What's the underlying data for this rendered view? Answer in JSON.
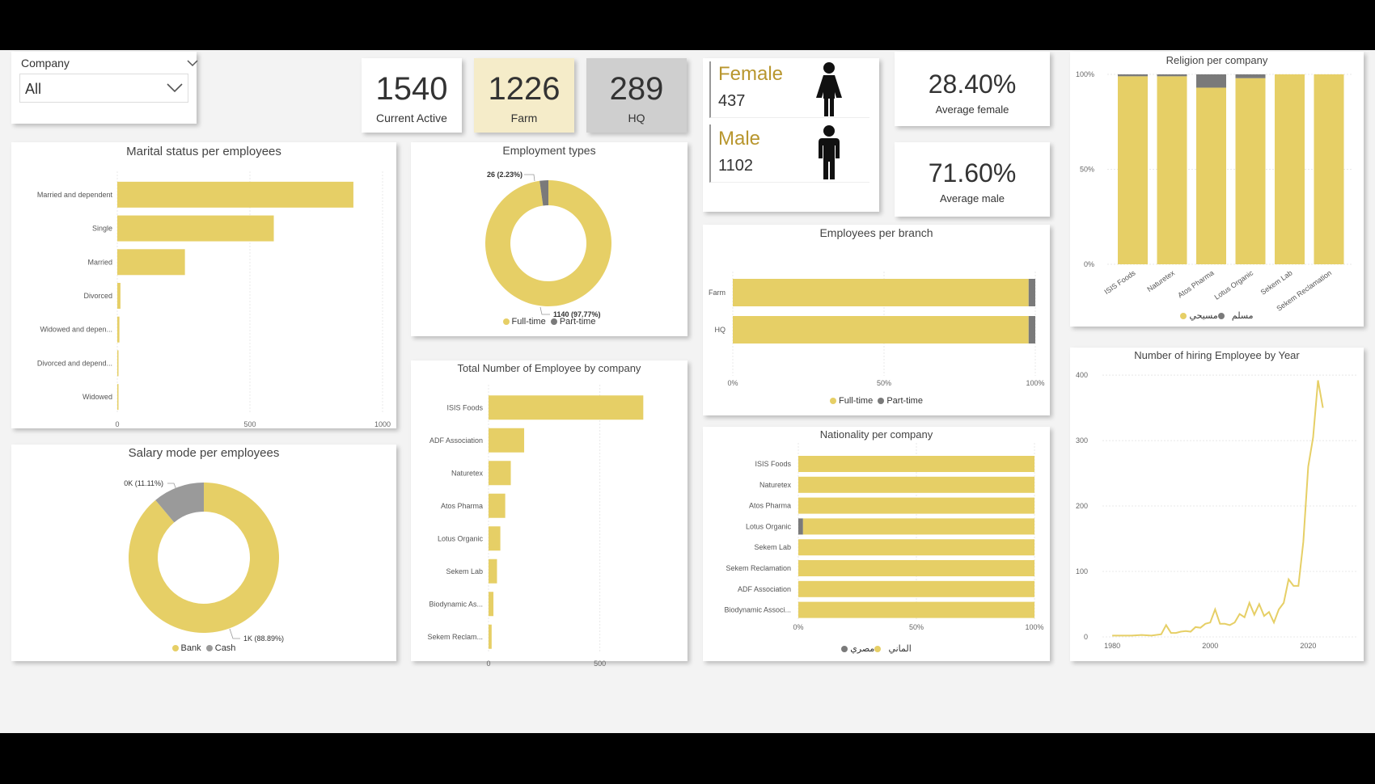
{
  "colors": {
    "yellow": "#e6cf66",
    "gray": "#8c8c8c",
    "darkgray": "#7a7a7a",
    "gold_text": "#b8962e"
  },
  "slicer": {
    "label": "Company",
    "value": "All"
  },
  "kpis": [
    {
      "value": "1540",
      "label": "Current Active"
    },
    {
      "value": "1226",
      "label": "Farm"
    },
    {
      "value": "289",
      "label": "HQ"
    }
  ],
  "gender": {
    "female_label": "Female",
    "female_value": "437",
    "female_icon": "female-person-icon",
    "male_label": "Male",
    "male_value": "1102",
    "male_icon": "male-person-icon"
  },
  "averages": [
    {
      "value": "28.40%",
      "label": "Average female"
    },
    {
      "value": "71.60%",
      "label": "Average male"
    }
  ],
  "chart_data": [
    {
      "id": "marital",
      "type": "bar",
      "title": "Marital status per employees",
      "categories": [
        "Married and dependent",
        "Single",
        "Married",
        "Divorced",
        "Widowed and depen...",
        "Divorced and depend...",
        "Widowed"
      ],
      "values": [
        890,
        590,
        255,
        12,
        8,
        4,
        3
      ],
      "xlim": [
        0,
        1000
      ],
      "ticks": [
        "0",
        "500",
        "1000"
      ],
      "tick_values": [
        0,
        500,
        1000
      ]
    },
    {
      "id": "employment",
      "type": "pie",
      "title": "Employment types",
      "series": [
        {
          "name": "Full-time",
          "value": 1140,
          "label": "1140 (97.77%)"
        },
        {
          "name": "Part-time",
          "value": 26,
          "label": "26 (2.23%)"
        }
      ]
    },
    {
      "id": "salary",
      "type": "pie",
      "title": "Salary mode per employees",
      "series": [
        {
          "name": "Bank",
          "value": 88.89,
          "label": "1K (88.89%)"
        },
        {
          "name": "Cash",
          "value": 11.11,
          "label": "0K (11.11%)"
        }
      ]
    },
    {
      "id": "bycompany",
      "type": "bar",
      "title": "Total Number of Employee by company",
      "categories": [
        "ISIS Foods",
        "ADF Association",
        "Naturetex",
        "Atos Pharma",
        "Lotus Organic",
        "Sekem Lab",
        "Biodynamic As...",
        "Sekem Reclam..."
      ],
      "values": [
        695,
        160,
        100,
        75,
        53,
        38,
        22,
        14
      ],
      "xlim": [
        0,
        850
      ],
      "ticks": [
        "0",
        "500"
      ],
      "tick_values": [
        0,
        500
      ]
    },
    {
      "id": "branch",
      "type": "bar",
      "title": "Employees per branch",
      "categories": [
        "Farm",
        "HQ"
      ],
      "series": [
        {
          "name": "Full-time",
          "values": [
            97.8,
            97.8
          ]
        },
        {
          "name": "Part-time",
          "values": [
            2.2,
            2.2
          ]
        }
      ],
      "ticks": [
        "0%",
        "50%",
        "100%"
      ],
      "tick_values": [
        0,
        50,
        100
      ]
    },
    {
      "id": "nationality",
      "type": "bar",
      "title": "Nationality per company",
      "categories": [
        "ISIS Foods",
        "Naturetex",
        "Atos Pharma",
        "Lotus Organic",
        "Sekem Lab",
        "Sekem Reclamation",
        "ADF Association",
        "Biodynamic Associ..."
      ],
      "series": [
        {
          "name": "الماني",
          "values": [
            0,
            0,
            0,
            2,
            0,
            0,
            0,
            0
          ]
        },
        {
          "name": "مصري",
          "values": [
            100,
            100,
            100,
            98,
            100,
            100,
            100,
            100
          ]
        }
      ],
      "legend_order": [
        "الماني",
        "مصري"
      ],
      "ticks": [
        "0%",
        "50%",
        "100%"
      ],
      "tick_values": [
        0,
        50,
        100
      ]
    },
    {
      "id": "religion",
      "type": "bar",
      "title": "Religion per company",
      "categories": [
        "ISIS Foods",
        "Naturetex",
        "Atos Pharma",
        "Lotus Organic",
        "Sekem Lab",
        "Sekem Reclamation"
      ],
      "series": [
        {
          "name": "مسلم",
          "values": [
            99,
            99,
            93,
            98,
            100,
            100
          ]
        },
        {
          "name": "مسيحي",
          "values": [
            1,
            1,
            7,
            2,
            0,
            0
          ]
        }
      ],
      "ticks": [
        "0%",
        "50%",
        "100%"
      ],
      "tick_values": [
        0,
        50,
        100
      ]
    },
    {
      "id": "hiring",
      "type": "line",
      "title": "Number of hiring Employee by Year",
      "x": [
        1980,
        1982,
        1984,
        1986,
        1988,
        1990,
        1991,
        1992,
        1993,
        1994,
        1995,
        1996,
        1997,
        1998,
        1999,
        2000,
        2001,
        2002,
        2003,
        2004,
        2005,
        2006,
        2007,
        2008,
        2009,
        2010,
        2011,
        2012,
        2013,
        2014,
        2015,
        2016,
        2017,
        2018,
        2019,
        2020,
        2021,
        2022,
        2023
      ],
      "y": [
        2,
        2,
        2,
        3,
        2,
        4,
        18,
        6,
        6,
        8,
        9,
        8,
        15,
        14,
        20,
        22,
        42,
        20,
        20,
        18,
        22,
        35,
        30,
        52,
        34,
        50,
        32,
        38,
        22,
        42,
        52,
        88,
        78,
        78,
        145,
        260,
        305,
        392,
        350
      ],
      "xlim": [
        1978,
        2030
      ],
      "ylim": [
        0,
        410
      ],
      "xticks": [
        "1980",
        "2000",
        "2020"
      ],
      "xtick_values": [
        1980,
        2000,
        2020
      ],
      "yticks": [
        "0",
        "100",
        "200",
        "300",
        "400"
      ],
      "ytick_values": [
        0,
        100,
        200,
        300,
        400
      ]
    }
  ]
}
